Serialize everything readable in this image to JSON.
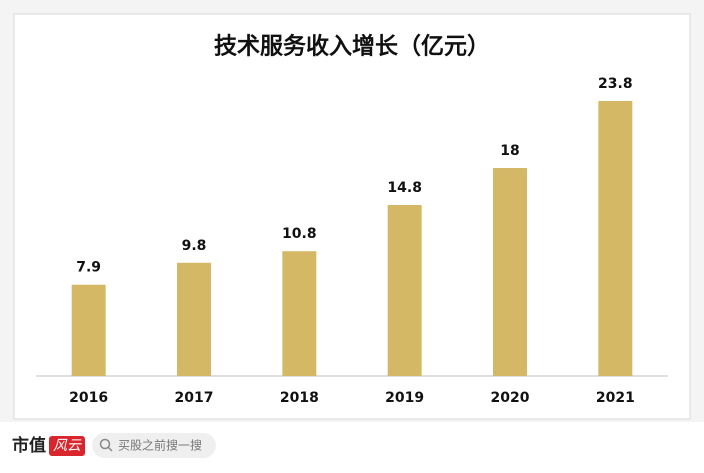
{
  "chart_data": {
    "type": "bar",
    "title": "技术服务收入增长（亿元）",
    "categories": [
      "2016",
      "2017",
      "2018",
      "2019",
      "2020",
      "2021"
    ],
    "values": [
      7.9,
      9.8,
      10.8,
      14.8,
      18,
      23.8
    ],
    "color": "#d4b866"
  },
  "footer": {
    "brand": "市值",
    "logo": "风云",
    "search": "买股之前搜一搜"
  }
}
